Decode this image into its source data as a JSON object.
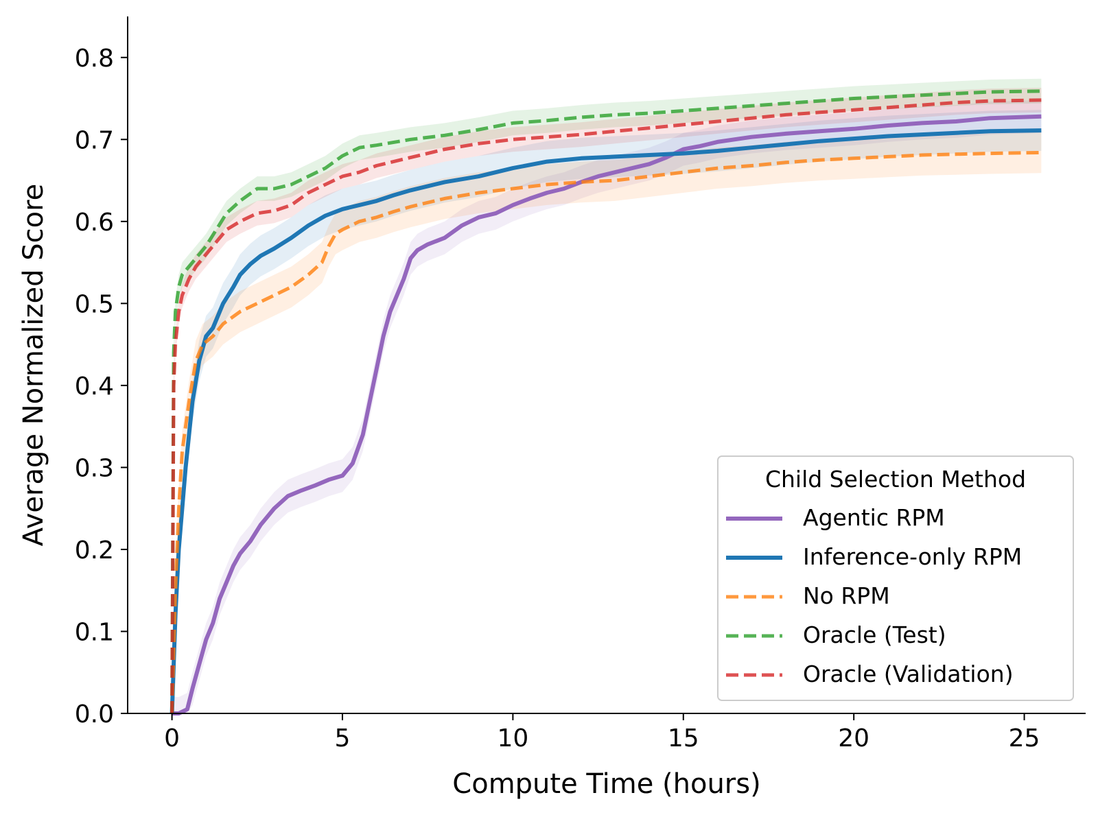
{
  "chart_data": {
    "type": "line",
    "title": "",
    "xlabel": "Compute Time (hours)",
    "ylabel": "Average Normalized Score",
    "xlim": [
      -1.3,
      26.8
    ],
    "ylim": [
      0.0,
      0.85
    ],
    "xticks": [
      0,
      5,
      10,
      15,
      20,
      25
    ],
    "yticks": [
      0.0,
      0.1,
      0.2,
      0.3,
      0.4,
      0.5,
      0.6,
      0.7,
      0.8
    ],
    "grid": false,
    "legend": {
      "title": "Child Selection Method",
      "placement": "bottom-right"
    },
    "series": [
      {
        "name": "Agentic RPM",
        "style": "solid",
        "color": "#9467bd",
        "x": [
          0,
          0.2,
          0.45,
          0.6,
          0.8,
          1.0,
          1.2,
          1.4,
          1.6,
          1.8,
          2.0,
          2.3,
          2.6,
          3.0,
          3.4,
          3.8,
          4.2,
          4.6,
          5.0,
          5.3,
          5.6,
          5.8,
          6.0,
          6.2,
          6.4,
          6.6,
          6.8,
          7.0,
          7.2,
          7.5,
          8.0,
          8.5,
          9.0,
          9.5,
          10.0,
          10.5,
          11.0,
          11.5,
          12.0,
          12.5,
          13.0,
          13.5,
          14.0,
          14.5,
          15.0,
          15.5,
          16.0,
          17.0,
          18.0,
          19.0,
          20.0,
          21.0,
          22.0,
          23.0,
          24.0,
          25.5
        ],
        "y": [
          0.0,
          0.0,
          0.005,
          0.03,
          0.06,
          0.09,
          0.11,
          0.14,
          0.16,
          0.18,
          0.195,
          0.21,
          0.23,
          0.25,
          0.265,
          0.272,
          0.278,
          0.285,
          0.29,
          0.305,
          0.34,
          0.38,
          0.42,
          0.46,
          0.49,
          0.51,
          0.53,
          0.555,
          0.565,
          0.572,
          0.58,
          0.595,
          0.605,
          0.61,
          0.62,
          0.628,
          0.635,
          0.64,
          0.648,
          0.655,
          0.66,
          0.665,
          0.67,
          0.678,
          0.688,
          0.692,
          0.697,
          0.703,
          0.707,
          0.71,
          0.713,
          0.717,
          0.72,
          0.722,
          0.726,
          0.728
        ],
        "band": 0.02
      },
      {
        "name": "Inference-only RPM",
        "style": "solid",
        "color": "#1f77b4",
        "x": [
          0,
          0.1,
          0.2,
          0.4,
          0.6,
          0.8,
          1.0,
          1.2,
          1.5,
          1.8,
          2.0,
          2.3,
          2.6,
          3.0,
          3.5,
          4.0,
          4.5,
          5.0,
          5.5,
          6.0,
          6.5,
          7.0,
          7.5,
          8.0,
          9.0,
          10.0,
          11.0,
          12.0,
          13.0,
          14.0,
          15.0,
          16.0,
          17.0,
          18.0,
          19.0,
          20.0,
          21.0,
          22.0,
          23.0,
          24.0,
          25.5
        ],
        "y": [
          0.0,
          0.12,
          0.2,
          0.3,
          0.38,
          0.43,
          0.46,
          0.47,
          0.5,
          0.52,
          0.535,
          0.548,
          0.558,
          0.567,
          0.58,
          0.595,
          0.607,
          0.615,
          0.62,
          0.625,
          0.632,
          0.638,
          0.643,
          0.648,
          0.655,
          0.665,
          0.673,
          0.677,
          0.679,
          0.681,
          0.683,
          0.686,
          0.69,
          0.694,
          0.698,
          0.701,
          0.704,
          0.706,
          0.708,
          0.71,
          0.711
        ],
        "band": 0.025
      },
      {
        "name": "No RPM",
        "style": "dashed",
        "color": "#ff7f0e",
        "x": [
          0,
          0.1,
          0.2,
          0.3,
          0.5,
          0.7,
          0.9,
          1.2,
          1.5,
          2.0,
          2.5,
          3.0,
          3.5,
          4.0,
          4.4,
          4.6,
          4.8,
          5.0,
          5.5,
          6.0,
          6.5,
          7.0,
          8.0,
          9.0,
          10.0,
          11.0,
          12.0,
          13.0,
          14.0,
          15.0,
          16.0,
          17.0,
          18.0,
          19.0,
          20.0,
          21.0,
          22.0,
          23.0,
          24.0,
          25.5
        ],
        "y": [
          0.0,
          0.15,
          0.25,
          0.32,
          0.38,
          0.43,
          0.45,
          0.46,
          0.475,
          0.49,
          0.5,
          0.51,
          0.52,
          0.535,
          0.55,
          0.57,
          0.585,
          0.59,
          0.6,
          0.605,
          0.612,
          0.618,
          0.628,
          0.635,
          0.64,
          0.645,
          0.648,
          0.65,
          0.655,
          0.66,
          0.665,
          0.668,
          0.672,
          0.675,
          0.677,
          0.679,
          0.681,
          0.682,
          0.683,
          0.684
        ],
        "band": 0.025
      },
      {
        "name": "Oracle (Test)",
        "style": "dashed",
        "color": "#2ca02c",
        "x": [
          0,
          0.05,
          0.1,
          0.2,
          0.3,
          0.5,
          0.7,
          1.0,
          1.3,
          1.6,
          2.0,
          2.5,
          3.0,
          3.5,
          4.0,
          4.5,
          5.0,
          5.5,
          6.0,
          7.0,
          8.0,
          9.0,
          10.0,
          11.0,
          12.0,
          13.0,
          14.0,
          15.0,
          16.0,
          17.0,
          18.0,
          19.0,
          20.0,
          21.0,
          22.0,
          23.0,
          24.0,
          25.5
        ],
        "y": [
          0.0,
          0.44,
          0.49,
          0.52,
          0.535,
          0.545,
          0.555,
          0.57,
          0.59,
          0.61,
          0.625,
          0.64,
          0.64,
          0.645,
          0.655,
          0.665,
          0.68,
          0.69,
          0.693,
          0.7,
          0.705,
          0.712,
          0.72,
          0.723,
          0.727,
          0.73,
          0.732,
          0.735,
          0.738,
          0.741,
          0.744,
          0.747,
          0.75,
          0.752,
          0.754,
          0.756,
          0.758,
          0.759
        ],
        "band": 0.015
      },
      {
        "name": "Oracle (Validation)",
        "style": "dashed",
        "color": "#d62728",
        "x": [
          0,
          0.05,
          0.1,
          0.2,
          0.3,
          0.5,
          0.7,
          1.0,
          1.3,
          1.6,
          2.0,
          2.5,
          3.0,
          3.5,
          4.0,
          4.5,
          5.0,
          5.5,
          6.0,
          7.0,
          8.0,
          9.0,
          10.0,
          11.0,
          12.0,
          13.0,
          14.0,
          15.0,
          16.0,
          17.0,
          18.0,
          19.0,
          20.0,
          21.0,
          22.0,
          23.0,
          24.0,
          25.5
        ],
        "y": [
          0.0,
          0.4,
          0.45,
          0.49,
          0.51,
          0.53,
          0.545,
          0.56,
          0.575,
          0.59,
          0.6,
          0.61,
          0.613,
          0.62,
          0.635,
          0.645,
          0.655,
          0.66,
          0.668,
          0.678,
          0.688,
          0.695,
          0.7,
          0.703,
          0.706,
          0.71,
          0.714,
          0.718,
          0.722,
          0.726,
          0.73,
          0.733,
          0.736,
          0.739,
          0.742,
          0.745,
          0.747,
          0.748
        ],
        "band": 0.015
      }
    ]
  }
}
